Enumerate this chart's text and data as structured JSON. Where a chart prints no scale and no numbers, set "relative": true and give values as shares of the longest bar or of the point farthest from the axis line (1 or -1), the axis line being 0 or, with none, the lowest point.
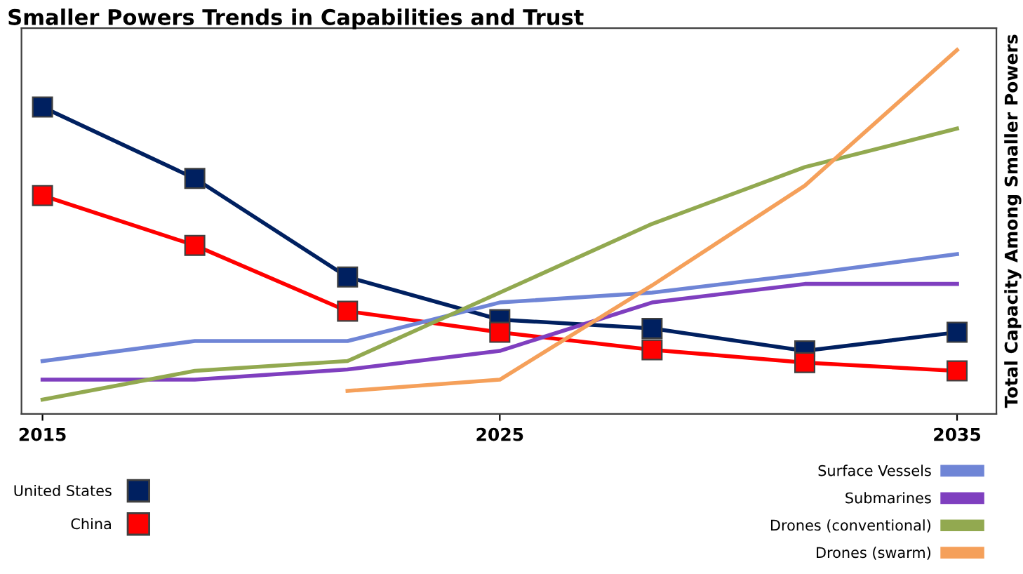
{
  "chart_data": {
    "type": "line",
    "title": "Smaller Powers Trends in Capabilities and Trust",
    "ylabel": "Total Capacity Among Smaller Powers",
    "relative": true,
    "x": [
      2015,
      2018.33,
      2021.67,
      2025,
      2028.33,
      2031.67,
      2035
    ],
    "xlim": [
      2014.54,
      2035.86
    ],
    "xticks": [
      2015,
      2025,
      2035
    ],
    "series": [
      {
        "name": "United States",
        "color": "#002060",
        "marker": "square",
        "values": [
          0.843,
          0.647,
          0.376,
          0.259,
          0.235,
          0.173,
          0.224
        ]
      },
      {
        "name": "China",
        "color": "#ff0000",
        "marker": "square",
        "values": [
          0.6,
          0.463,
          0.282,
          0.224,
          0.176,
          0.141,
          0.118
        ]
      },
      {
        "name": "Surface Vessels",
        "color": "#6f85d6",
        "values": [
          0.145,
          0.2,
          0.2,
          0.306,
          0.333,
          0.384,
          0.439
        ]
      },
      {
        "name": "Submarines",
        "color": "#7f3fbf",
        "values": [
          0.094,
          0.094,
          0.122,
          0.173,
          0.306,
          0.357,
          0.357
        ]
      },
      {
        "name": "Drones (conventional)",
        "color": "#92a950",
        "values": [
          0.039,
          0.118,
          0.145,
          0.333,
          0.522,
          0.678,
          0.784
        ]
      },
      {
        "name": "Drones (swarm)",
        "color": "#f5a05a",
        "values": [
          null,
          null,
          0.063,
          0.094,
          0.353,
          0.627,
          1.0
        ]
      }
    ],
    "legend": "bottom",
    "grid": false
  }
}
